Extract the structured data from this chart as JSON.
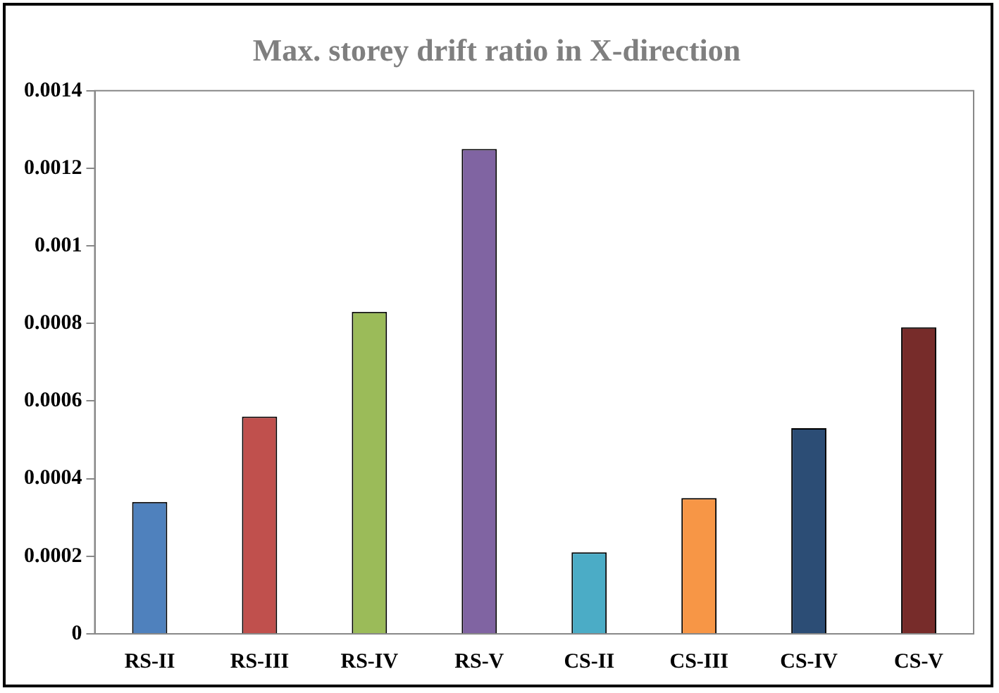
{
  "chart_data": {
    "type": "bar",
    "title": "Max. storey drift ratio in X-direction",
    "categories": [
      "RS-II",
      "RS-III",
      "RS-IV",
      "RS-V",
      "CS-II",
      "CS-III",
      "CS-IV",
      "CS-V"
    ],
    "values": [
      0.00034,
      0.00056,
      0.00083,
      0.00125,
      0.00021,
      0.00035,
      0.00053,
      0.00079
    ],
    "colors": [
      "#4f81bd",
      "#c0504d",
      "#9bbb59",
      "#8064a2",
      "#4bacc6",
      "#f79646",
      "#2c4d75",
      "#772c2a"
    ],
    "ylim": [
      0,
      0.0014
    ],
    "yticks": [
      0,
      0.0002,
      0.0004,
      0.0006,
      0.0008,
      0.001,
      0.0012,
      0.0014
    ],
    "grid": false,
    "legend": false
  }
}
